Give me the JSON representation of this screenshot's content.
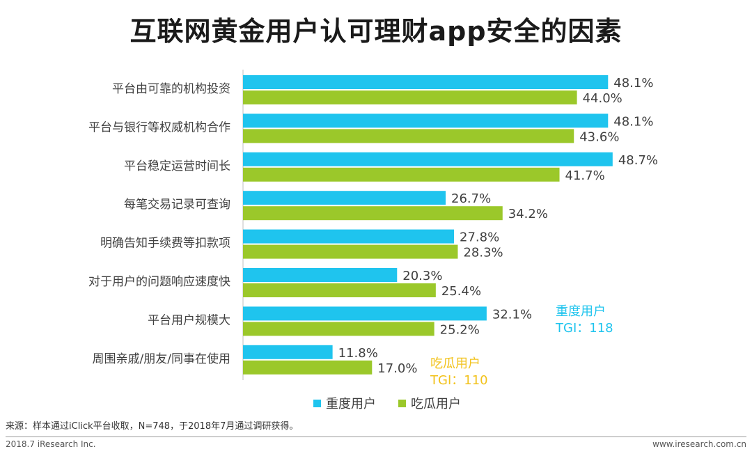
{
  "title": "互联网黄金用户认可理财app安全的因素",
  "chart_data": {
    "type": "bar",
    "orientation": "horizontal",
    "categories": [
      "平台由可靠的机构投资",
      "平台与银行等权威机构合作",
      "平台稳定运营时间长",
      "每笔交易记录可查询",
      "明确告知手续费等扣款项",
      "对于用户的问题响应速度快",
      "平台用户规模大",
      "周围亲戚/朋友/同事在使用"
    ],
    "series": [
      {
        "name": "重度用户",
        "color": "#1fc4ee",
        "values": [
          48.1,
          48.1,
          48.7,
          26.7,
          27.8,
          20.3,
          32.1,
          11.8
        ],
        "labels": [
          "48.1%",
          "48.1%",
          "48.7%",
          "26.7%",
          "27.8%",
          "20.3%",
          "32.1%",
          "11.8%"
        ]
      },
      {
        "name": "吃瓜用户",
        "color": "#9bc82a",
        "values": [
          44.0,
          43.6,
          41.7,
          34.2,
          28.3,
          25.4,
          25.2,
          17.0
        ],
        "labels": [
          "44.0%",
          "43.6%",
          "41.7%",
          "34.2%",
          "28.3%",
          "25.4%",
          "25.2%",
          "17.0%"
        ]
      }
    ],
    "xlim": [
      0,
      50
    ],
    "legend_position": "bottom",
    "annotations": [
      {
        "line1": "重度用户",
        "line2": "TGI：118",
        "color": "#1fc4ee"
      },
      {
        "line1": "吃瓜用户",
        "line2": "TGI：110",
        "color": "#f2c21b"
      }
    ]
  },
  "source": "来源：样本通过iClick平台收取，N=748，于2018年7月通过调研获得。",
  "footer": {
    "left": "2018.7 iResearch Inc.",
    "right": "www.iresearch.com.cn"
  }
}
